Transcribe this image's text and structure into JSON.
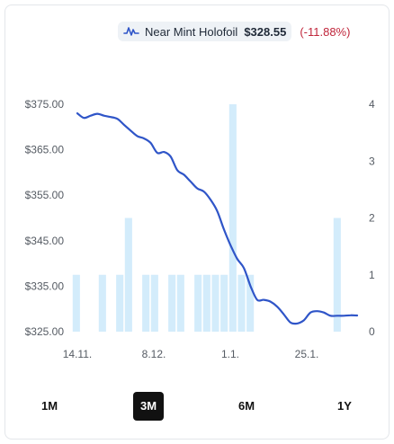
{
  "legend": {
    "icon": "line-series-icon",
    "name": "Near Mint Holofoil",
    "price": "$328.55",
    "change": "(-11.88%)",
    "line_color": "#2f55c8",
    "bar_color": "#d3ecfb",
    "change_color": "#c0263b"
  },
  "chart_data": {
    "type": "line+bar",
    "x_tick_labels": [
      "14.11.",
      "8.12.",
      "1.1.",
      "25.1."
    ],
    "y_left": {
      "ticks": [
        "$325.00",
        "$335.00",
        "$345.00",
        "$355.00",
        "$365.00",
        "$375.00"
      ],
      "range": [
        325,
        375
      ]
    },
    "y_right": {
      "ticks": [
        "0",
        "1",
        "2",
        "3",
        "4"
      ],
      "range": [
        0,
        4
      ]
    },
    "series": [
      {
        "kind": "line",
        "axis": "left",
        "values": [
          373.0,
          372.0,
          372.5,
          372.9,
          372.5,
          372.2,
          371.8,
          370.5,
          369.2,
          368.0,
          367.5,
          366.5,
          364.3,
          364.5,
          363.5,
          360.5,
          359.5,
          358.0,
          356.5,
          355.8,
          354.0,
          351.5,
          347.5,
          344.0,
          341.0,
          339.0,
          335.0,
          332.0,
          332.0,
          331.6,
          330.5,
          328.8,
          327.0,
          326.8,
          327.5,
          329.2,
          329.5,
          329.2,
          328.5,
          328.5,
          328.5,
          328.6,
          328.55
        ]
      },
      {
        "kind": "bar",
        "axis": "right",
        "values": [
          1,
          0,
          0,
          1,
          0,
          1,
          2,
          0,
          1,
          1,
          0,
          1,
          1,
          0,
          1,
          1,
          1,
          1,
          4,
          1,
          1,
          0,
          0,
          0,
          0,
          0,
          0,
          0,
          0,
          0,
          2,
          0,
          0
        ]
      }
    ]
  },
  "ranges": [
    {
      "label": "1M",
      "active": false
    },
    {
      "label": "3M",
      "active": true
    },
    {
      "label": "6M",
      "active": false
    },
    {
      "label": "1Y",
      "active": false
    }
  ]
}
